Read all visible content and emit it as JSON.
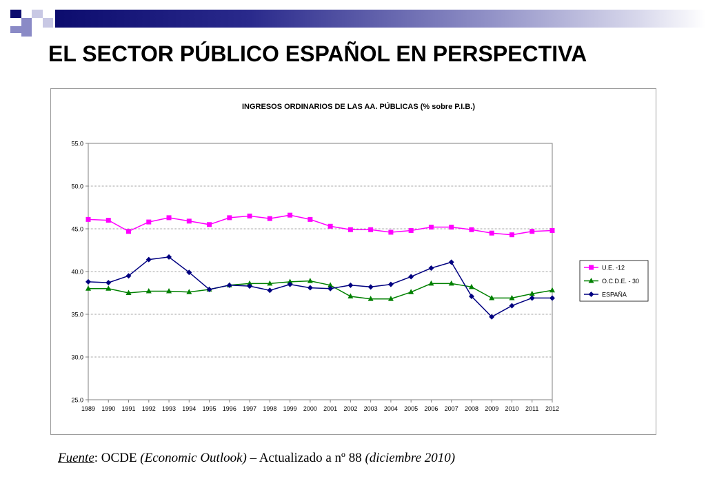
{
  "slide": {
    "title": "EL SECTOR PÚBLICO ESPAÑOL EN PERSPECTIVA",
    "source": {
      "label": "Fuente",
      "sep": ": ",
      "org": "OCDE ",
      "publication": "(Economic Outlook)",
      "note": " – Actualizado a nº 88 ",
      "date": "(diciembre 2010)"
    }
  },
  "colors": {
    "band_dark": "#0c0c6e",
    "square_mid": "#8a8ac6",
    "square_light": "#c8c8e4"
  },
  "chart_data": {
    "type": "line",
    "title": "INGRESOS ORDINARIOS DE LAS AA. PÚBLICAS  (% sobre P.I.B.)",
    "xlabel": "",
    "ylabel": "",
    "ylim": [
      25.0,
      55.0
    ],
    "yticks": [
      "25.0",
      "30.0",
      "35.0",
      "40.0",
      "45.0",
      "50.0",
      "55.0"
    ],
    "grid": true,
    "legend_position": "right",
    "categories": [
      "1989",
      "1990",
      "1991",
      "1992",
      "1993",
      "1994",
      "1995",
      "1996",
      "1997",
      "1998",
      "1999",
      "2000",
      "2001",
      "2002",
      "2003",
      "2004",
      "2005",
      "2006",
      "2007",
      "2008",
      "2009",
      "2010",
      "2011",
      "2012"
    ],
    "series": [
      {
        "name": "U.E. -12",
        "color": "#ff00ff",
        "marker": "square",
        "values": [
          46.1,
          46.0,
          44.7,
          45.8,
          46.3,
          45.9,
          45.5,
          46.3,
          46.5,
          46.2,
          46.6,
          46.1,
          45.3,
          44.9,
          44.9,
          44.6,
          44.8,
          45.2,
          45.2,
          44.9,
          44.5,
          44.3,
          44.7,
          44.8
        ]
      },
      {
        "name": "O.C.D.E. - 30",
        "color": "#008000",
        "marker": "triangle",
        "values": [
          38.0,
          38.0,
          37.5,
          37.7,
          37.7,
          37.6,
          37.9,
          38.4,
          38.6,
          38.6,
          38.8,
          38.9,
          38.4,
          37.1,
          36.8,
          36.8,
          37.6,
          38.6,
          38.6,
          38.2,
          36.9,
          36.9,
          37.4,
          37.8
        ]
      },
      {
        "name": "ESPAÑA",
        "color": "#000080",
        "marker": "diamond",
        "values": [
          38.8,
          38.7,
          39.5,
          41.4,
          41.7,
          39.9,
          37.9,
          38.4,
          38.3,
          37.8,
          38.5,
          38.1,
          38.0,
          38.4,
          38.2,
          38.5,
          39.4,
          40.4,
          41.1,
          37.1,
          34.7,
          36.0,
          36.9,
          36.9
        ]
      }
    ]
  }
}
